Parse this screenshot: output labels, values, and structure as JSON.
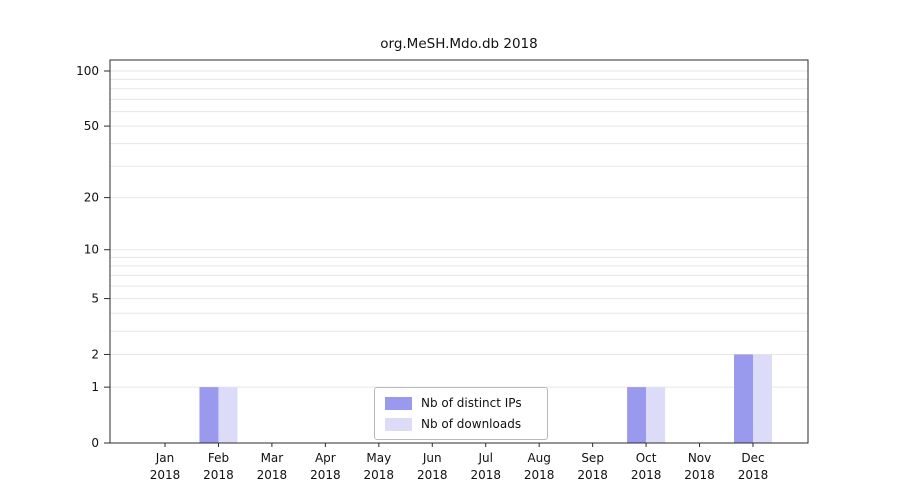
{
  "chart_data": {
    "type": "bar",
    "title": "org.MeSH.Mdo.db 2018",
    "categories": [
      "Jan",
      "Feb",
      "Mar",
      "Apr",
      "May",
      "Jun",
      "Jul",
      "Aug",
      "Sep",
      "Oct",
      "Nov",
      "Dec"
    ],
    "year": "2018",
    "series": [
      {
        "name": "Nb of distinct IPs",
        "color": "#9999ee",
        "values": [
          0,
          1,
          0,
          0,
          0,
          0,
          0,
          0,
          0,
          1,
          0,
          2
        ]
      },
      {
        "name": "Nb of downloads",
        "color": "#dcdcf8",
        "values": [
          0,
          1,
          0,
          0,
          0,
          0,
          0,
          0,
          0,
          1,
          0,
          2
        ]
      }
    ],
    "y_ticks": [
      0,
      1,
      2,
      5,
      10,
      20,
      50,
      100
    ],
    "gridline_values": [
      1,
      2,
      3,
      4,
      5,
      6,
      7,
      8,
      9,
      10,
      20,
      30,
      40,
      50,
      60,
      70,
      80,
      90,
      100
    ],
    "ylim": [
      0,
      100
    ],
    "y_scale": "log1p",
    "grid": true,
    "legend_position": "bottom-center",
    "colors": {
      "axis": "#2b2b2b",
      "gridline": "#e7e7e7",
      "text": "#111111",
      "background": "#ffffff"
    }
  }
}
